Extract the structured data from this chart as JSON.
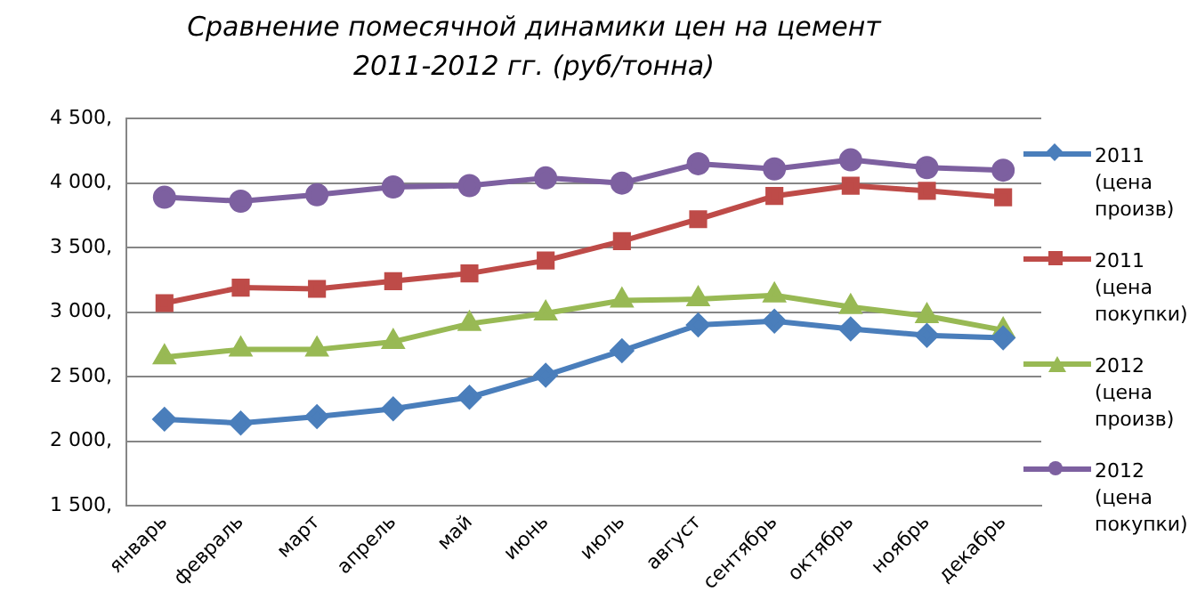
{
  "chart_data": {
    "type": "line",
    "title": "Сравнение помесячной динамики цен на цемент 2011-2012 гг. (руб/тонна)",
    "categories": [
      "январь",
      "февраль",
      "март",
      "апрель",
      "май",
      "июнь",
      "июль",
      "август",
      "сентябрь",
      "октябрь",
      "ноябрь",
      "декабрь"
    ],
    "series": [
      {
        "name": "2011 (цена произв)",
        "color": "#4a7ebb",
        "marker": "diamond",
        "values": [
          2170,
          2140,
          2190,
          2250,
          2340,
          2510,
          2700,
          2900,
          2930,
          2870,
          2820,
          2800
        ]
      },
      {
        "name": "2011 (цена покупки)",
        "color": "#be4b48",
        "marker": "square",
        "values": [
          3070,
          3190,
          3180,
          3240,
          3300,
          3400,
          3550,
          3720,
          3900,
          3980,
          3940,
          3890
        ]
      },
      {
        "name": "2012 (цена произв)",
        "color": "#98b954",
        "marker": "triangle",
        "values": [
          2650,
          2710,
          2710,
          2770,
          2910,
          2990,
          3090,
          3100,
          3130,
          3040,
          2970,
          2860
        ]
      },
      {
        "name": "2012 (цена покупки)",
        "color": "#7d60a0",
        "marker": "circle",
        "values": [
          3890,
          3860,
          3910,
          3970,
          3980,
          4040,
          4000,
          4150,
          4110,
          4180,
          4120,
          4100
        ]
      }
    ],
    "ylim": [
      1500,
      4500
    ],
    "yticks": [
      {
        "value": 1500,
        "label": "1 500,"
      },
      {
        "value": 2000,
        "label": "2 000,"
      },
      {
        "value": 2500,
        "label": "2 500,"
      },
      {
        "value": 3000,
        "label": "3 000,"
      },
      {
        "value": 3500,
        "label": "3 500,"
      },
      {
        "value": 4000,
        "label": "4 000,"
      },
      {
        "value": 4500,
        "label": "4 500,"
      }
    ],
    "grid": "y",
    "legend": "right",
    "line_style": "solid"
  }
}
